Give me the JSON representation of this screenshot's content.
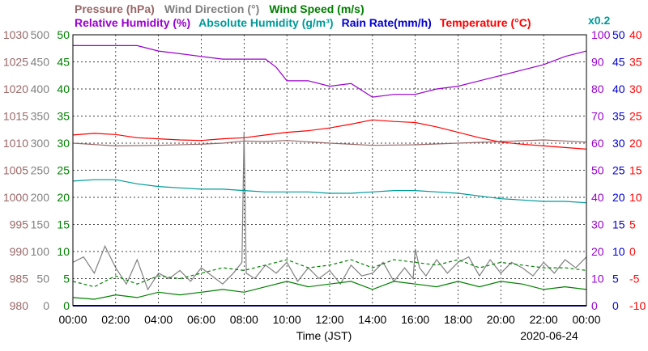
{
  "chart_data": {
    "type": "line",
    "date": "2020-06-24",
    "xlabel": "Time (JST)",
    "x_ticks": [
      "00:00",
      "02:00",
      "04:00",
      "06:00",
      "08:00",
      "10:00",
      "12:00",
      "14:00",
      "16:00",
      "18:00",
      "20:00",
      "22:00",
      "00:00"
    ],
    "x_range_hours": [
      0,
      24
    ],
    "grid": true,
    "legend_row1": [
      {
        "name": "Pressure (hPa)",
        "color": "#996666"
      },
      {
        "name": "Wind Direction (°)",
        "color": "#808080"
      },
      {
        "name": "Wind Speed (m/s)",
        "color": "#008000"
      }
    ],
    "legend_row2": [
      {
        "name": "Relative Humidity (%)",
        "color": "#9900cc"
      },
      {
        "name": "Absolute Humidity (g/m³)",
        "color": "#009999"
      },
      {
        "name": "Rain Rate(mm/h)",
        "color": "#0000cc"
      },
      {
        "name": "Temperature (°C)",
        "color": "#ff0000"
      }
    ],
    "abs_humidity_scale_label": "x0.2",
    "axes": {
      "pressure": {
        "ticks": [
          "1030",
          "1025",
          "1020",
          "1015",
          "1010",
          "1005",
          "1000",
          "995",
          "990",
          "985",
          "980"
        ],
        "range": [
          980,
          1030
        ],
        "color": "#996666"
      },
      "wind_dir": {
        "ticks": [
          "500",
          "450",
          "400",
          "350",
          "300",
          "250",
          "200",
          "150",
          "100",
          "50",
          "0"
        ],
        "range": [
          0,
          500
        ],
        "color": "#808080"
      },
      "wind_speed": {
        "ticks": [
          "50",
          "45",
          "40",
          "35",
          "30",
          "25",
          "20",
          "15",
          "10",
          "5",
          "0"
        ],
        "range": [
          0,
          50
        ],
        "color": "#008000"
      },
      "humidity": {
        "ticks": [
          "100",
          "90",
          "80",
          "70",
          "60",
          "50",
          "40",
          "30",
          "20",
          "10",
          "0"
        ],
        "range": [
          0,
          100
        ],
        "color": "#9900cc"
      },
      "rain": {
        "ticks": [
          "50",
          "45",
          "40",
          "35",
          "30",
          "25",
          "20",
          "15",
          "10",
          "5",
          "0"
        ],
        "range": [
          0,
          50
        ],
        "color": "#0000cc"
      },
      "temperature": {
        "ticks": [
          "40",
          "35",
          "30",
          "25",
          "20",
          "15",
          "10",
          "5",
          "0",
          "-5",
          "-10"
        ],
        "range": [
          -10,
          40
        ],
        "color": "#ff0000"
      }
    },
    "series": [
      {
        "name": "Pressure (hPa)",
        "color": "#996666",
        "x": [
          0,
          2,
          4,
          6,
          7,
          8,
          9,
          10,
          12,
          14,
          16,
          18,
          20,
          22,
          24
        ],
        "values": [
          1010.0,
          1009.5,
          1009.6,
          1009.8,
          1010.0,
          1010.4,
          1010.3,
          1010.5,
          1010.0,
          1009.6,
          1009.7,
          1010.0,
          1010.3,
          1010.6,
          1010.2
        ]
      },
      {
        "name": "Wind Direction (°)",
        "color": "#808080",
        "x": [
          0,
          0.5,
          1,
          1.5,
          2,
          2.5,
          3,
          3.5,
          4,
          4.5,
          5,
          5.5,
          6,
          6.5,
          7,
          7.5,
          7.9,
          8.0,
          8.1,
          8.5,
          9,
          9.5,
          10,
          10.5,
          11,
          11.5,
          12,
          12.5,
          13,
          13.5,
          14,
          14.5,
          15,
          15.5,
          15.9,
          16.0,
          16.2,
          16.5,
          17,
          17.5,
          18,
          18.5,
          19,
          19.5,
          20,
          20.5,
          21,
          21.5,
          22,
          22.5,
          23,
          23.5,
          24
        ],
        "values": [
          80,
          90,
          60,
          110,
          70,
          40,
          85,
          30,
          60,
          50,
          65,
          45,
          70,
          55,
          40,
          60,
          80,
          320,
          60,
          50,
          75,
          60,
          80,
          45,
          70,
          50,
          65,
          40,
          75,
          55,
          60,
          80,
          45,
          70,
          50,
          105,
          70,
          55,
          85,
          60,
          80,
          90,
          55,
          85,
          60,
          80,
          70,
          55,
          80,
          60,
          85,
          70,
          90
        ]
      },
      {
        "name": "Wind Speed (m/s)",
        "color": "#008000",
        "x": [
          0,
          1,
          2,
          3,
          4,
          5,
          6,
          7,
          8,
          9,
          10,
          11,
          12,
          13,
          14,
          15,
          16,
          17,
          18,
          19,
          20,
          21,
          22,
          23,
          24
        ],
        "values": [
          1.5,
          1.2,
          2.0,
          1.5,
          2.5,
          2.0,
          2.5,
          3.0,
          2.5,
          3.5,
          4.5,
          3.5,
          4.0,
          4.5,
          3.0,
          4.5,
          4.0,
          3.5,
          4.5,
          3.5,
          4.5,
          4.0,
          3.0,
          3.5,
          3.0
        ]
      },
      {
        "name": "Wind Speed gust (m/s)",
        "color": "#008000",
        "x": [
          0,
          1,
          2,
          3,
          4,
          5,
          6,
          7,
          8,
          9,
          10,
          11,
          12,
          13,
          14,
          15,
          16,
          17,
          18,
          19,
          20,
          21,
          22,
          23,
          24
        ],
        "values": [
          4.5,
          3.5,
          5.5,
          4.0,
          5.5,
          5.0,
          6.0,
          7.0,
          6.5,
          7.5,
          8.5,
          7.0,
          7.5,
          8.5,
          7.0,
          8.5,
          8.0,
          7.5,
          8.5,
          7.0,
          8.0,
          7.5,
          7.0,
          7.0,
          6.5
        ]
      },
      {
        "name": "Relative Humidity (%)",
        "color": "#9900cc",
        "x": [
          0,
          2,
          3,
          4,
          5,
          6,
          7,
          8,
          9,
          9.5,
          10,
          11,
          12,
          13,
          14,
          15,
          16,
          17,
          18,
          19,
          20,
          21,
          22,
          23,
          24
        ],
        "values": [
          96,
          96,
          96,
          94,
          93,
          92,
          91,
          91,
          91,
          88,
          83,
          83,
          81,
          82,
          77,
          78,
          78,
          80,
          81,
          83,
          85,
          87,
          89,
          92,
          94
        ]
      },
      {
        "name": "Absolute Humidity (g/m³)",
        "color": "#009999",
        "x": [
          0,
          1,
          2,
          3,
          4,
          5,
          6,
          7,
          8,
          9,
          10,
          11,
          12,
          13,
          14,
          15,
          16,
          17,
          18,
          19,
          20,
          21,
          22,
          23,
          24
        ],
        "values": [
          46,
          46.5,
          46.5,
          45,
          44,
          43.5,
          43,
          43,
          42.5,
          42,
          42,
          42,
          41.5,
          41.5,
          42,
          42.5,
          42.5,
          42,
          41.5,
          40.5,
          39.5,
          39,
          38.5,
          38.5,
          38
        ]
      },
      {
        "name": "Rain Rate(mm/h)",
        "color": "#0000cc",
        "x": [
          0,
          24
        ],
        "values": [
          0,
          0
        ]
      },
      {
        "name": "Temperature (°C)",
        "color": "#ff0000",
        "x": [
          0,
          1,
          2,
          3,
          4,
          5,
          6,
          7,
          8,
          9,
          10,
          11,
          12,
          13,
          14,
          15,
          16,
          17,
          18,
          19,
          20,
          21,
          22,
          23,
          24
        ],
        "values": [
          21.5,
          21.8,
          21.6,
          21.0,
          20.8,
          20.6,
          20.5,
          20.8,
          21.0,
          21.5,
          22.0,
          22.3,
          22.8,
          23.5,
          24.3,
          24.0,
          23.8,
          23.0,
          22.0,
          21.0,
          20.2,
          19.8,
          19.5,
          19.2,
          18.9
        ]
      }
    ]
  }
}
